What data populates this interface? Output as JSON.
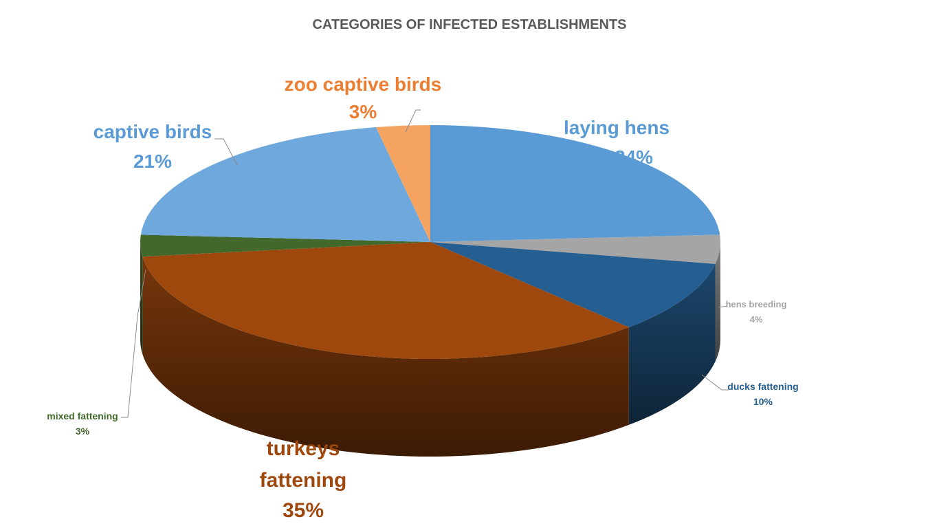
{
  "chart_data": {
    "type": "pie",
    "title": "CATEGORIES OF INFECTED ESTABLISHMENTS",
    "slices": [
      {
        "name": "laying hens",
        "value": 24,
        "pct_label": "24%",
        "color": "#5b9bd5",
        "label_color": "#5b9bd5"
      },
      {
        "name": "hens breeding",
        "value": 4,
        "pct_label": "4%",
        "color": "#a5a5a5",
        "label_color": "#a5a5a5"
      },
      {
        "name": "ducks fattening",
        "value": 10,
        "pct_label": "10%",
        "color": "#255e91",
        "label_color": "#255e91"
      },
      {
        "name": "turkeys fattening",
        "value": 35,
        "pct_label": "35%",
        "color": "#9e480e",
        "label_color": "#9e480e"
      },
      {
        "name": "mixed fattening",
        "value": 3,
        "pct_label": "3%",
        "color": "#43682b",
        "label_color": "#43682b"
      },
      {
        "name": "captive birds",
        "value": 21,
        "pct_label": "21%",
        "color": "#6fa8dc",
        "label_color": "#5b9bd5"
      },
      {
        "name": "zoo captive birds",
        "value": 3,
        "pct_label": "3%",
        "color": "#f4a460",
        "label_color": "#ed7d31"
      }
    ],
    "legend": "none",
    "style": "3d-pie"
  }
}
